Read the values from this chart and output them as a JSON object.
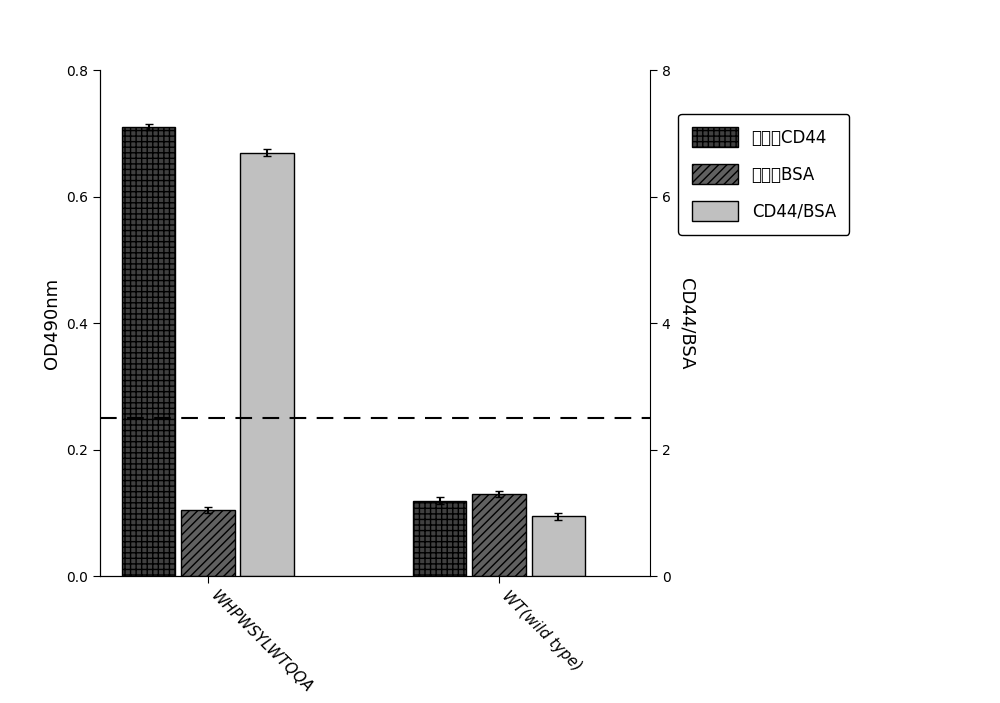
{
  "groups": [
    "WHPWSYLWTQQA",
    "WT(wild type)"
  ],
  "values": {
    "WHPWSYLWTQQA": [
      0.71,
      0.105,
      0.67
    ],
    "WT(wild type)": [
      0.12,
      0.13,
      0.095
    ]
  },
  "errors": {
    "WHPWSYLWTQQA": [
      0.005,
      0.005,
      0.005
    ],
    "WT(wild type)": [
      0.005,
      0.005,
      0.005
    ]
  },
  "left_ylim": [
    0.0,
    0.8
  ],
  "left_yticks": [
    0.0,
    0.2,
    0.4,
    0.6,
    0.8
  ],
  "right_ylim": [
    0,
    8
  ],
  "right_yticks": [
    0,
    2,
    4,
    6,
    8
  ],
  "left_ylabel": "OD490nm",
  "right_ylabel": "CD44/BSA",
  "dashed_line_y": 0.25,
  "background_color": "#ffffff",
  "legend_labels": [
    "结合至CD44",
    "结合至BSA",
    "CD44/BSA"
  ],
  "bar_width": 0.55
}
